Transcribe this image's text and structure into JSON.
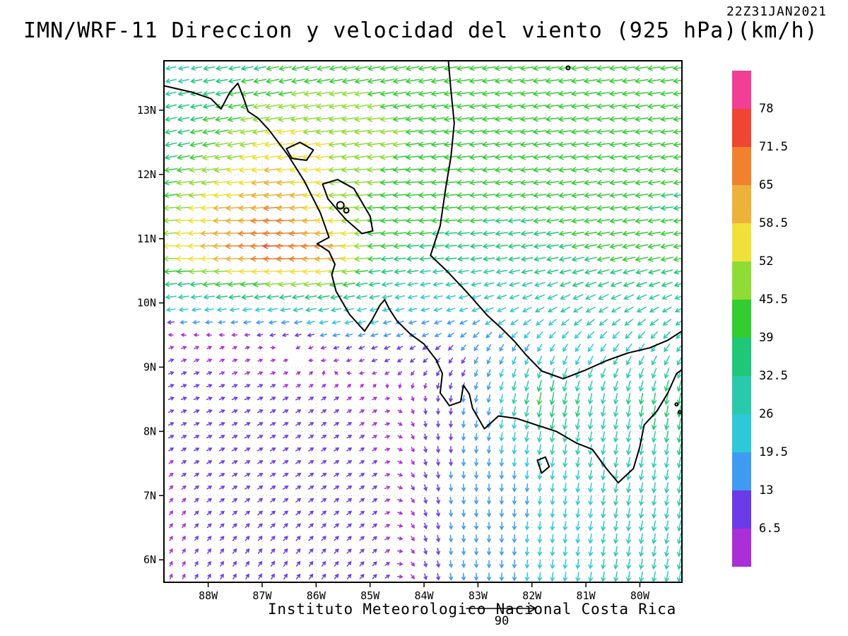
{
  "chart_data": {
    "type": "vector_field",
    "title": "IMN/WRF-11 Direccion y velocidad del viento (925 hPa)(km/h)",
    "timestamp": "22Z31JAN2021",
    "caption": "Instituto Meteorologico Nacional Costa Rica",
    "reference_vector_label": "90",
    "grid": "dotted",
    "legend_position": "right",
    "x_axis": {
      "tick_labels": [
        "88W",
        "87W",
        "86W",
        "85W",
        "84W",
        "83W",
        "82W",
        "81W",
        "80W"
      ],
      "tick_lons": [
        -88,
        -87,
        -86,
        -85,
        -84,
        -83,
        -82,
        -81,
        -80
      ],
      "range_lon": [
        -88.82,
        -79.22
      ]
    },
    "y_axis": {
      "tick_labels": [
        "13N",
        "12N",
        "11N",
        "10N",
        "9N",
        "8N",
        "7N",
        "6N"
      ],
      "tick_lats": [
        13,
        12,
        11,
        10,
        9,
        8,
        7,
        6
      ],
      "range_lat": [
        5.65,
        13.77
      ]
    },
    "colorbar": {
      "tick_values": [
        78,
        71.5,
        65,
        58.5,
        52,
        45.5,
        39,
        32.5,
        26,
        19.5,
        13,
        6.5
      ],
      "colors_top_to_bottom": [
        "#F23F96",
        "#EF4533",
        "#F0822E",
        "#EDB23A",
        "#EFE13A",
        "#8FDC36",
        "#33CC33",
        "#1EC878",
        "#2BC9AC",
        "#2EC8D9",
        "#3F9BF2",
        "#6B3BE8",
        "#AB2FD6"
      ]
    },
    "wind_grid": {
      "units": "km/h",
      "lons": [
        -88.8,
        -87.8,
        -86.8,
        -85.8,
        -84.8,
        -83.8,
        -82.8,
        -81.8,
        -80.8,
        -79.3
      ],
      "lats": [
        13.7,
        12.5,
        11.5,
        10.8,
        10.0,
        9.3,
        8.5,
        7.2,
        5.7
      ],
      "u_kmh": [
        [
          -28,
          -33,
          -38,
          -42,
          -44,
          -44,
          -44,
          -44,
          -43,
          -42
        ],
        [
          -34,
          -44,
          -55,
          -52,
          -46,
          -44,
          -43,
          -43,
          -42,
          -40
        ],
        [
          -46,
          -58,
          -66,
          -52,
          -44,
          -42,
          -40,
          -40,
          -40,
          -38
        ],
        [
          -52,
          -64,
          -74,
          -68,
          -40,
          -36,
          -35,
          -36,
          -40,
          -40
        ],
        [
          -26,
          -28,
          -30,
          -32,
          -26,
          -22,
          -24,
          -26,
          -28,
          -26
        ],
        [
          6,
          4,
          2,
          -6,
          -10,
          -8,
          -8,
          -10,
          -14,
          -16
        ],
        [
          8,
          8,
          8,
          6,
          4,
          0,
          -4,
          -8,
          -6,
          -6
        ],
        [
          4,
          7,
          8,
          8,
          6,
          2,
          0,
          -2,
          -4,
          -6
        ],
        [
          2,
          4,
          5,
          6,
          6,
          2,
          0,
          -2,
          -4,
          -6
        ]
      ],
      "v_kmh": [
        [
          -6,
          -6,
          -8,
          -8,
          -8,
          -8,
          -6,
          -6,
          -6,
          -6
        ],
        [
          -8,
          -8,
          -8,
          -6,
          -6,
          -5,
          -5,
          -5,
          -5,
          -5
        ],
        [
          -4,
          -5,
          -6,
          -4,
          -3,
          -3,
          -4,
          -5,
          -5,
          -5
        ],
        [
          -2,
          -2,
          -3,
          -5,
          -4,
          -3,
          -4,
          -6,
          -8,
          -8
        ],
        [
          -4,
          -4,
          -5,
          -6,
          -6,
          -5,
          -8,
          -12,
          -14,
          -12
        ],
        [
          2,
          2,
          0,
          -2,
          -4,
          -6,
          -14,
          -18,
          -20,
          -22
        ],
        [
          3,
          3,
          4,
          4,
          2,
          -8,
          -18,
          -40,
          -30,
          -36
        ],
        [
          4,
          4,
          5,
          5,
          4,
          -12,
          -16,
          -20,
          -26,
          -30
        ],
        [
          5,
          7,
          8,
          8,
          6,
          -12,
          -16,
          -22,
          -26,
          -30
        ]
      ]
    }
  }
}
